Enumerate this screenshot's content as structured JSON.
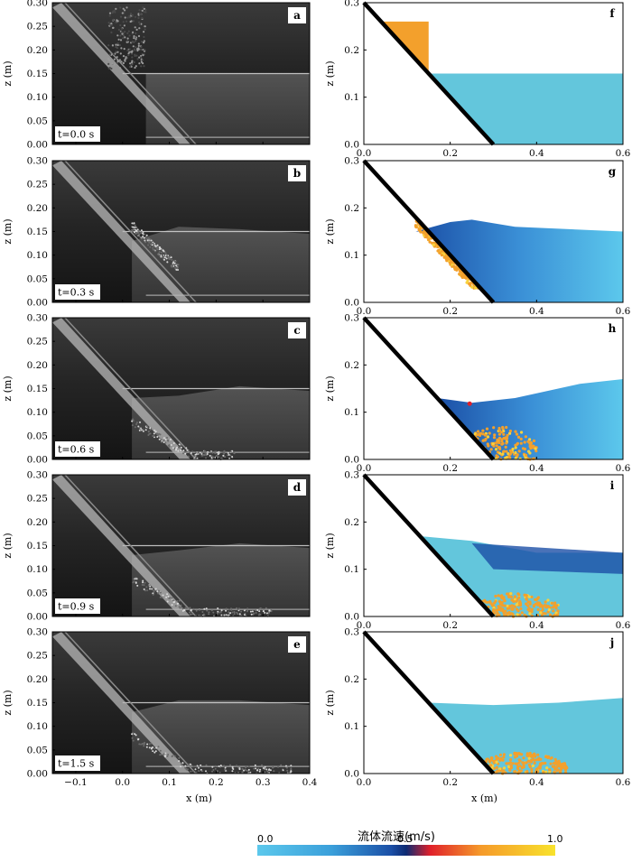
{
  "figure": {
    "left_panels": [
      {
        "letter": "a",
        "time_label": "t=0.0 s"
      },
      {
        "letter": "b",
        "time_label": "t=0.3 s"
      },
      {
        "letter": "c",
        "time_label": "t=0.6 s"
      },
      {
        "letter": "d",
        "time_label": "t=0.9 s"
      },
      {
        "letter": "e",
        "time_label": "t=1.5 s"
      }
    ],
    "right_panels": [
      {
        "letter": "f"
      },
      {
        "letter": "g"
      },
      {
        "letter": "h"
      },
      {
        "letter": "i"
      },
      {
        "letter": "j"
      }
    ],
    "left_axes": {
      "xlabel": "x (m)",
      "ylabel": "z (m)",
      "x_ticks": [
        "−0.1",
        "0.0",
        "0.1",
        "0.2",
        "0.3",
        "0.4"
      ],
      "y_ticks": [
        "0.00",
        "0.05",
        "0.10",
        "0.15",
        "0.20",
        "0.25",
        "0.30"
      ],
      "xlim": [
        -0.15,
        0.4
      ],
      "ylim": [
        0,
        0.3
      ]
    },
    "right_axes": {
      "xlabel": "x (m)",
      "ylabel": "z (m)",
      "x_ticks": [
        "0.0",
        "0.2",
        "0.4",
        "0.6"
      ],
      "y_ticks": [
        "0.0",
        "0.1",
        "0.2",
        "0.3"
      ],
      "xlim": [
        0,
        0.6
      ],
      "ylim": [
        0,
        0.3
      ]
    },
    "colorbar": {
      "title": "流体流速(m/s)",
      "ticks": [
        "0.0",
        "0.5",
        "1.0"
      ],
      "colors": [
        "#5cc8ec",
        "#1b4fa6",
        "#e0202a",
        "#f59a2a",
        "#f8e22c"
      ]
    },
    "colors": {
      "water": "#63c6dc",
      "water_fast": "#1b4fa6",
      "grains": "#f3a02c",
      "slope": "#000000"
    }
  }
}
